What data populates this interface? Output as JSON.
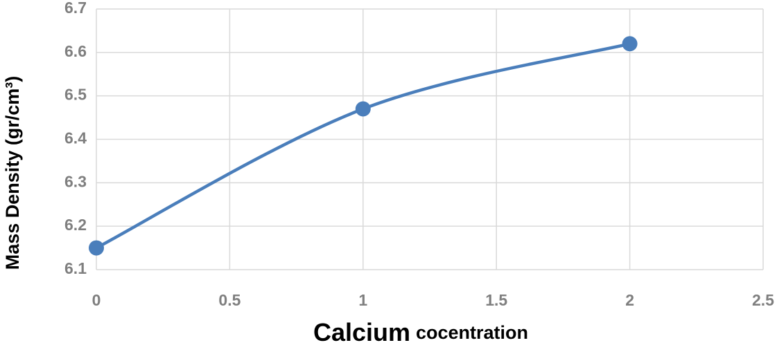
{
  "chart_data": {
    "type": "line",
    "smooth": true,
    "xlabel": [
      "Calcium",
      "cocentration"
    ],
    "ylabel": "Mass Density (gr/cm³)",
    "x": [
      0,
      1,
      2
    ],
    "series": [
      {
        "color": "#4a7ebb",
        "values": [
          6.15,
          6.47,
          6.62
        ]
      }
    ],
    "xlim": [
      0,
      2.5
    ],
    "xticks": [
      0,
      0.5,
      1,
      1.5,
      2,
      2.5
    ],
    "ylim": [
      6.1,
      6.7
    ],
    "yticks": [
      6.1,
      6.2,
      6.3,
      6.4,
      6.5,
      6.6,
      6.7
    ],
    "grid": true
  }
}
